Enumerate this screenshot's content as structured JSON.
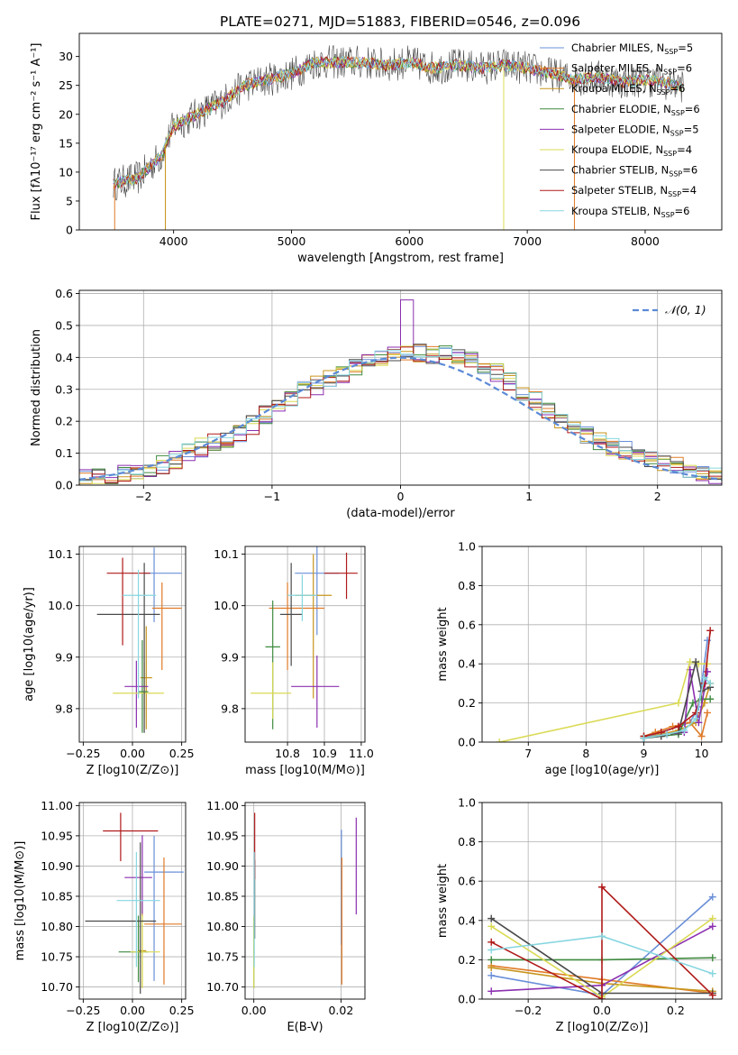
{
  "figure": {
    "title": "PLATE=0271, MJD=51883, FIBERID=0546, z=0.096"
  },
  "model_colors": [
    "#6a8fd8",
    "#e07b28",
    "#c8961e",
    "#3f8a3f",
    "#8c2fb0",
    "#dada55",
    "#4a4a4a",
    "#b01a1a",
    "#87d6e0"
  ],
  "models": [
    {
      "imf": "Chabrier",
      "lib": "MILES",
      "nssp": 5,
      "color": "#6a8fd8"
    },
    {
      "imf": "Salpeter",
      "lib": "MILES",
      "nssp": 6,
      "color": "#e07b28"
    },
    {
      "imf": "Kroupa",
      "lib": "MILES",
      "nssp": 6,
      "color": "#c8961e"
    },
    {
      "imf": "Chabrier",
      "lib": "ELODIE",
      "nssp": 6,
      "color": "#3f8a3f"
    },
    {
      "imf": "Salpeter",
      "lib": "ELODIE",
      "nssp": 5,
      "color": "#8c2fb0"
    },
    {
      "imf": "Kroupa",
      "lib": "ELODIE",
      "nssp": 4,
      "color": "#dada55"
    },
    {
      "imf": "Chabrier",
      "lib": "STELIB",
      "nssp": 6,
      "color": "#4a4a4a"
    },
    {
      "imf": "Salpeter",
      "lib": "STELIB",
      "nssp": 4,
      "color": "#b01a1a"
    },
    {
      "imf": "Kroupa",
      "lib": "STELIB",
      "nssp": 6,
      "color": "#87d6e0"
    }
  ],
  "chart_data": [
    {
      "id": "spectrum",
      "type": "line",
      "xlabel": "wavelength [Angstrom, rest frame]",
      "ylabel": "Flux [f_λ10^-17 erg cm^-2 s^-1 A^-1]",
      "xlim": [
        3200,
        8650
      ],
      "ylim": [
        0,
        34
      ],
      "xticks": [
        4000,
        5000,
        6000,
        7000,
        8000
      ],
      "yticks": [
        0,
        5,
        10,
        15,
        20,
        25,
        30
      ],
      "data_range": [
        3490,
        8330
      ],
      "continuum": [
        [
          3500,
          8
        ],
        [
          3700,
          9
        ],
        [
          3900,
          13
        ],
        [
          4000,
          18
        ],
        [
          4200,
          20
        ],
        [
          4400,
          22
        ],
        [
          4600,
          25
        ],
        [
          4800,
          26
        ],
        [
          5000,
          27
        ],
        [
          5200,
          29
        ],
        [
          5400,
          29
        ],
        [
          5600,
          29
        ],
        [
          5800,
          28.5
        ],
        [
          6000,
          29
        ],
        [
          6200,
          28
        ],
        [
          6400,
          28.5
        ],
        [
          6600,
          28
        ],
        [
          6800,
          28.5
        ],
        [
          7000,
          28
        ],
        [
          7200,
          27
        ],
        [
          7400,
          26
        ],
        [
          7600,
          26.5
        ],
        [
          7800,
          25.5
        ],
        [
          8000,
          26
        ],
        [
          8300,
          25
        ]
      ],
      "dips": [
        [
          6800,
          "#dada55"
        ],
        [
          7400,
          "#e07b28"
        ],
        [
          3930,
          "#c8961e"
        ],
        [
          3500,
          "#e07b28"
        ]
      ],
      "legend_loc": "upper right"
    },
    {
      "id": "residual-hist",
      "type": "histogram",
      "xlabel": "(data-model)/error",
      "ylabel": "Normed distribution",
      "xlim": [
        -2.5,
        2.5
      ],
      "ylim": [
        0,
        0.61
      ],
      "xticks": [
        -2,
        -1,
        0,
        1,
        2
      ],
      "yticks": [
        0.0,
        0.1,
        0.2,
        0.3,
        0.4,
        0.5,
        0.6
      ],
      "bin_width": 0.1,
      "envelope": [
        [
          -2.5,
          0.02
        ],
        [
          -2.2,
          0.03
        ],
        [
          -2.0,
          0.04
        ],
        [
          -1.8,
          0.07
        ],
        [
          -1.6,
          0.11
        ],
        [
          -1.4,
          0.14
        ],
        [
          -1.2,
          0.17
        ],
        [
          -1.0,
          0.24
        ],
        [
          -0.8,
          0.29
        ],
        [
          -0.6,
          0.32
        ],
        [
          -0.4,
          0.36
        ],
        [
          -0.2,
          0.39
        ],
        [
          0.0,
          0.42
        ],
        [
          0.2,
          0.41
        ],
        [
          0.4,
          0.41
        ],
        [
          0.6,
          0.38
        ],
        [
          0.8,
          0.34
        ],
        [
          1.0,
          0.28
        ],
        [
          1.2,
          0.22
        ],
        [
          1.4,
          0.16
        ],
        [
          1.6,
          0.13
        ],
        [
          1.8,
          0.1
        ],
        [
          2.0,
          0.08
        ],
        [
          2.2,
          0.05
        ],
        [
          2.5,
          0.03
        ]
      ],
      "gaussian": {
        "label": "𝒩(0, 1)",
        "color": "#5b8ad6"
      },
      "grid": true,
      "legend_loc": "upper right"
    },
    {
      "id": "age-vs-z",
      "type": "errorbar",
      "xlabel": "Z [log10(Z/Z⊙)]",
      "ylabel": "age [log10(age/yr)]",
      "xlim": [
        -0.27,
        0.27
      ],
      "ylim": [
        9.735,
        10.115
      ],
      "xticks": [
        -0.25,
        0.0,
        0.25
      ],
      "yticks": [
        9.8,
        9.9,
        10.0,
        10.1
      ],
      "points": [
        {
          "m": 0,
          "x": 0.11,
          "xerr": [
            0.05,
            0.14
          ],
          "y": 10.063,
          "yerr": [
            0.095,
            0.05
          ]
        },
        {
          "m": 1,
          "x": 0.15,
          "xerr": [
            0.05,
            0.1
          ],
          "y": 9.995,
          "yerr": [
            0.12,
            0.05
          ]
        },
        {
          "m": 2,
          "x": 0.07,
          "xerr": [
            0.03,
            0.03
          ],
          "y": 9.86,
          "yerr": [
            0.1,
            0.1
          ]
        },
        {
          "m": 3,
          "x": 0.05,
          "xerr": [
            0.02,
            0.03
          ],
          "y": 9.833,
          "yerr": [
            0.08,
            0.1
          ]
        },
        {
          "m": 4,
          "x": 0.02,
          "xerr": [
            0.06,
            0.06
          ],
          "y": 9.843,
          "yerr": [
            0.08,
            0.05
          ]
        },
        {
          "m": 5,
          "x": 0.06,
          "xerr": [
            0.16,
            0.1
          ],
          "y": 9.83,
          "yerr": [
            0.05,
            0.06
          ]
        },
        {
          "m": 6,
          "x": 0.06,
          "xerr": [
            0.24,
            0.08
          ],
          "y": 9.983,
          "yerr": [
            0.23,
            0.1
          ]
        },
        {
          "m": 7,
          "x": -0.05,
          "xerr": [
            0.08,
            0.14
          ],
          "y": 10.063,
          "yerr": [
            0.14,
            0.03
          ]
        },
        {
          "m": 8,
          "x": 0.03,
          "xerr": [
            0.08,
            0.09
          ],
          "y": 10.02,
          "yerr": [
            0.2,
            0.05
          ]
        }
      ],
      "grid": true
    },
    {
      "id": "age-vs-mass",
      "type": "errorbar",
      "xlabel": "mass [log10(M/M⊙)]",
      "ylabel": "",
      "xlim": [
        10.685,
        11.01
      ],
      "ylim": [
        9.735,
        10.115
      ],
      "xticks": [
        10.8,
        10.9,
        11.0
      ],
      "yticks": [
        9.8,
        9.9,
        10.0,
        10.1
      ],
      "points": [
        {
          "m": 0,
          "x": 10.88,
          "xerr": [
            0.06,
            0.06
          ],
          "y": 10.063,
          "yerr": [
            0.12,
            0.06
          ]
        },
        {
          "m": 1,
          "x": 10.8,
          "xerr": [
            0.05,
            0.1
          ],
          "y": 9.995,
          "yerr": [
            0.12,
            0.05
          ]
        },
        {
          "m": 2,
          "x": 10.87,
          "xerr": [
            0.05,
            0.05
          ],
          "y": 10.02,
          "yerr": [
            0.2,
            0.08
          ]
        },
        {
          "m": 3,
          "x": 10.76,
          "xerr": [
            0.02,
            0.02
          ],
          "y": 9.92,
          "yerr": [
            0.16,
            0.09
          ]
        },
        {
          "m": 4,
          "x": 10.88,
          "xerr": [
            0.07,
            0.06
          ],
          "y": 9.843,
          "yerr": [
            0.08,
            0.06
          ]
        },
        {
          "m": 5,
          "x": 10.76,
          "xerr": [
            0.06,
            0.05
          ],
          "y": 9.83,
          "yerr": [
            0.05,
            0.06
          ]
        },
        {
          "m": 6,
          "x": 10.81,
          "xerr": [
            0.03,
            0.03
          ],
          "y": 9.983,
          "yerr": [
            0.1,
            0.1
          ]
        },
        {
          "m": 7,
          "x": 10.96,
          "xerr": [
            0.06,
            0.03
          ],
          "y": 10.063,
          "yerr": [
            0.05,
            0.04
          ]
        },
        {
          "m": 8,
          "x": 10.84,
          "xerr": [
            0.04,
            0.04
          ],
          "y": 10.02,
          "yerr": [
            0.05,
            0.04
          ]
        }
      ],
      "grid": true
    },
    {
      "id": "weight-vs-age",
      "type": "line",
      "xlabel": "age [log10(age/yr)]",
      "ylabel": "mass weight",
      "xlim": [
        6.2,
        10.35
      ],
      "ylim": [
        0,
        1
      ],
      "xticks": [
        7,
        8,
        9,
        10
      ],
      "yticks": [
        0.0,
        0.2,
        0.4,
        0.6,
        0.8,
        1.0
      ],
      "series": [
        {
          "m": 0,
          "x": [
            9.0,
            9.3,
            9.6,
            9.8,
            9.95,
            10.1
          ],
          "y": [
            0.02,
            0.05,
            0.08,
            0.1,
            0.18,
            0.52
          ]
        },
        {
          "m": 1,
          "x": [
            9.0,
            9.2,
            9.5,
            9.8,
            10.0,
            10.1
          ],
          "y": [
            0.03,
            0.05,
            0.08,
            0.1,
            0.03,
            0.15
          ]
        },
        {
          "m": 2,
          "x": [
            9.0,
            9.3,
            9.6,
            9.9,
            10.05,
            10.15
          ],
          "y": [
            0.02,
            0.04,
            0.06,
            0.1,
            0.2,
            0.3
          ]
        },
        {
          "m": 3,
          "x": [
            9.0,
            9.3,
            9.6,
            9.85,
            10.0,
            10.15
          ],
          "y": [
            0.02,
            0.03,
            0.04,
            0.2,
            0.22,
            0.22
          ]
        },
        {
          "m": 4,
          "x": [
            9.0,
            9.4,
            9.7,
            9.8,
            9.95,
            10.1
          ],
          "y": [
            0.02,
            0.04,
            0.05,
            0.37,
            0.1,
            0.36
          ]
        },
        {
          "m": 5,
          "x": [
            6.5,
            9.6,
            9.8,
            9.95,
            10.1
          ],
          "y": [
            0.0,
            0.2,
            0.41,
            0.4,
            0.4
          ]
        },
        {
          "m": 6,
          "x": [
            9.0,
            9.3,
            9.6,
            9.9,
            10.0,
            10.15
          ],
          "y": [
            0.02,
            0.03,
            0.05,
            0.41,
            0.26,
            0.28
          ]
        },
        {
          "m": 7,
          "x": [
            9.0,
            9.3,
            9.6,
            9.9,
            10.05,
            10.15
          ],
          "y": [
            0.03,
            0.05,
            0.08,
            0.15,
            0.3,
            0.57
          ]
        },
        {
          "m": 8,
          "x": [
            9.0,
            9.4,
            9.7,
            9.9,
            10.05,
            10.15
          ],
          "y": [
            0.02,
            0.04,
            0.06,
            0.12,
            0.33,
            0.3
          ]
        }
      ],
      "grid": true
    },
    {
      "id": "mass-vs-z",
      "type": "errorbar",
      "xlabel": "Z [log10(Z/Z⊙)]",
      "ylabel": "mass [log10(M/M⊙)]",
      "xlim": [
        -0.27,
        0.27
      ],
      "ylim": [
        10.68,
        11.005
      ],
      "xticks": [
        -0.25,
        0.0,
        0.25
      ],
      "yticks": [
        10.7,
        10.75,
        10.8,
        10.85,
        10.9,
        10.95,
        11.0
      ],
      "points": [
        {
          "m": 0,
          "x": 0.11,
          "xerr": [
            0.05,
            0.15
          ],
          "y": 10.89,
          "yerr": [
            0.18,
            0.06
          ]
        },
        {
          "m": 1,
          "x": 0.16,
          "xerr": [
            0.1,
            0.09
          ],
          "y": 10.804,
          "yerr": [
            0.1,
            0.11
          ]
        },
        {
          "m": 2,
          "x": 0.05,
          "xerr": [
            0.02,
            0.02
          ],
          "y": 10.76,
          "yerr": [
            0.06,
            0.08
          ]
        },
        {
          "m": 3,
          "x": 0.03,
          "xerr": [
            0.1,
            0.05
          ],
          "y": 10.758,
          "yerr": [
            0.05,
            0.06
          ]
        },
        {
          "m": 4,
          "x": 0.05,
          "xerr": [
            0.09,
            0.05
          ],
          "y": 10.881,
          "yerr": [
            0.06,
            0.07
          ]
        },
        {
          "m": 5,
          "x": 0.05,
          "xerr": [
            0.06,
            0.09
          ],
          "y": 10.758,
          "yerr": [
            0.06,
            0.06
          ]
        },
        {
          "m": 6,
          "x": 0.04,
          "xerr": [
            0.28,
            0.08
          ],
          "y": 10.809,
          "yerr": [
            0.12,
            0.13
          ]
        },
        {
          "m": 7,
          "x": -0.06,
          "xerr": [
            0.09,
            0.19
          ],
          "y": 10.958,
          "yerr": [
            0.05,
            0.03
          ]
        },
        {
          "m": 8,
          "x": 0.02,
          "xerr": [
            0.1,
            0.12
          ],
          "y": 10.843,
          "yerr": [
            0.11,
            0.08
          ]
        }
      ],
      "grid": true
    },
    {
      "id": "mass-vs-ebv",
      "type": "errorbar",
      "xlabel": "E(B-V)",
      "ylabel": "",
      "xlim": [
        -0.002,
        0.0255
      ],
      "ylim": [
        10.68,
        11.005
      ],
      "xticks": [
        0.0,
        0.02
      ],
      "yticks": [
        10.7,
        10.75,
        10.8,
        10.85,
        10.9,
        10.95,
        11.0
      ],
      "points": [
        {
          "m": 0,
          "x": 0.0201,
          "yerr": [
            0.12,
            0.07
          ],
          "y": 10.89
        },
        {
          "m": 1,
          "x": 0.0202,
          "yerr": [
            0.1,
            0.11
          ],
          "y": 10.804
        },
        {
          "m": 2,
          "x": 0.0201,
          "yerr": [
            0.0,
            0.0
          ],
          "y": 10.76
        },
        {
          "m": 3,
          "x": 0.0,
          "yerr": [
            0.06,
            0.06
          ],
          "y": 10.758
        },
        {
          "m": 4,
          "x": 0.0005,
          "yerr": [
            0.0,
            0.0
          ],
          "y": 10.881
        },
        {
          "m": 5,
          "x": 0.0,
          "yerr": [
            0.06,
            0.06
          ],
          "y": 10.758
        },
        {
          "m": 6,
          "x": 0.0002,
          "yerr": [
            0.05,
            0.08
          ],
          "y": 10.83
        },
        {
          "m": 7,
          "x": 0.0002,
          "yerr": [
            0.08,
            0.03
          ],
          "y": 10.958
        },
        {
          "m": 8,
          "x": 0.0001,
          "yerr": [
            0.11,
            0.08
          ],
          "y": 10.843
        },
        {
          "m": 4,
          "x": 0.0235,
          "yerr": [
            0.07,
            0.09
          ],
          "y": 10.89
        }
      ],
      "grid": true
    },
    {
      "id": "weight-vs-z",
      "type": "line",
      "xlabel": "Z [log10(Z/Z⊙)]",
      "ylabel": "mass weight",
      "xlim": [
        -0.325,
        0.325
      ],
      "ylim": [
        0,
        1
      ],
      "xticks": [
        -0.2,
        0.0,
        0.2
      ],
      "yticks": [
        0.0,
        0.2,
        0.4,
        0.6,
        0.8,
        1.0
      ],
      "series": [
        {
          "m": 0,
          "x": [
            -0.3,
            0.0,
            0.3
          ],
          "y": [
            0.12,
            0.02,
            0.52
          ]
        },
        {
          "m": 1,
          "x": [
            -0.3,
            0.0,
            0.3
          ],
          "y": [
            0.17,
            0.1,
            0.03
          ]
        },
        {
          "m": 2,
          "x": [
            -0.3,
            0.0,
            0.3
          ],
          "y": [
            0.16,
            0.08,
            0.04
          ]
        },
        {
          "m": 3,
          "x": [
            -0.3,
            0.0,
            0.3
          ],
          "y": [
            0.2,
            0.2,
            0.21
          ]
        },
        {
          "m": 4,
          "x": [
            -0.3,
            0.0,
            0.3
          ],
          "y": [
            0.04,
            0.07,
            0.37
          ]
        },
        {
          "m": 5,
          "x": [
            -0.3,
            0.0,
            0.3
          ],
          "y": [
            0.37,
            0.01,
            0.41
          ]
        },
        {
          "m": 6,
          "x": [
            -0.3,
            0.0,
            0.3
          ],
          "y": [
            0.41,
            0.03,
            0.03
          ]
        },
        {
          "m": 7,
          "x": [
            -0.3,
            0.0,
            0.0,
            0.3
          ],
          "y": [
            0.29,
            0.0,
            0.57,
            0.02
          ]
        },
        {
          "m": 8,
          "x": [
            -0.3,
            0.0,
            0.3
          ],
          "y": [
            0.25,
            0.32,
            0.13
          ]
        }
      ],
      "grid": true
    }
  ]
}
